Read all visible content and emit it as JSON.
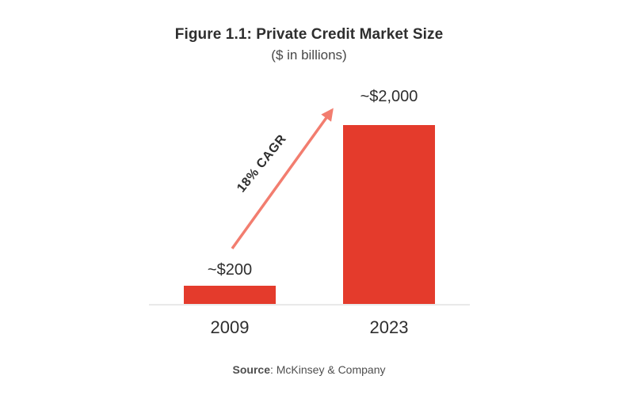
{
  "colors": {
    "background": "#ffffff",
    "bar": "#e43b2c",
    "arrow": "#f27d6f",
    "text_dark": "#2e2e2e",
    "text_medium": "#474747",
    "text_source": "#4f4f4f",
    "axis_line": "#e9e9e9"
  },
  "chart_data": {
    "type": "bar",
    "title": "Figure 1.1: Private Credit Market Size",
    "subtitle": "($ in billions)",
    "categories": [
      "2009",
      "2023"
    ],
    "values": [
      200,
      2000
    ],
    "value_labels": [
      "~$200",
      "~$2,000"
    ],
    "annotation": "18% CAGR",
    "xlabel": "",
    "ylabel": "",
    "ylim": [
      0,
      2000
    ],
    "grid": false,
    "legend": false,
    "source": "Source: McKinsey & Company"
  },
  "footer": {
    "source_label": "Source",
    "source_rest": ": McKinsey & Company"
  }
}
